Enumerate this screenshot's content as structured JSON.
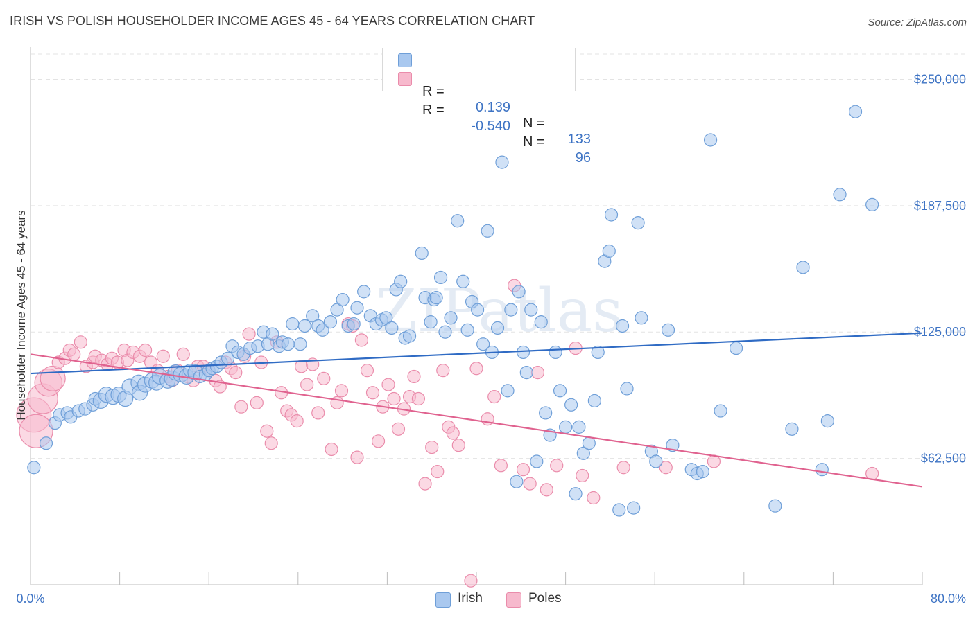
{
  "title": "IRISH VS POLISH HOUSEHOLDER INCOME AGES 45 - 64 YEARS CORRELATION CHART",
  "source": "Source: ZipAtlas.com",
  "watermark": "ZIPatlas",
  "colors": {
    "irish_fill": "#a9c8ef",
    "irish_stroke": "#6f9fd8",
    "irish_line": "#2f6bc4",
    "poles_fill": "#f7b9cd",
    "poles_stroke": "#ea8cab",
    "poles_line": "#e0628f",
    "tick_text": "#3d73c4",
    "grid": "#e3e3e3"
  },
  "legend": {
    "rows": [
      {
        "r_label": "R =",
        "r_value": "0.139",
        "n_label": "N =",
        "n_value": "133"
      },
      {
        "r_label": "R =",
        "r_value": "-0.540",
        "n_label": "N =",
        "n_value": "96"
      }
    ]
  },
  "bottom_legend": [
    "Irish",
    "Poles"
  ],
  "chart_data": {
    "type": "scatter",
    "title": "IRISH VS POLISH HOUSEHOLDER INCOME AGES 45 - 64 YEARS CORRELATION CHART",
    "xlabel": "",
    "ylabel": "Householder Income Ages 45 - 64 years",
    "xlim": [
      0,
      80
    ],
    "ylim": [
      0,
      262500
    ],
    "x_tick_labels": [
      "0.0%",
      "80.0%"
    ],
    "y_ticks": [
      62500,
      125000,
      187500,
      250000
    ],
    "y_tick_labels": [
      "$62,500",
      "$125,000",
      "$187,500",
      "$250,000"
    ],
    "grid": "horizontal dashed",
    "legend_position": "top-center",
    "series": [
      {
        "name": "Irish",
        "trend": {
          "x": [
            0,
            80
          ],
          "y": [
            104500,
            124500
          ]
        },
        "points": [
          [
            0.3,
            58000
          ],
          [
            1.4,
            70000
          ],
          [
            2.2,
            80000
          ],
          [
            2.6,
            84000
          ],
          [
            3.3,
            85000
          ],
          [
            3.6,
            83000
          ],
          [
            4.3,
            86000
          ],
          [
            4.9,
            87000
          ],
          [
            5.6,
            89000
          ],
          [
            5.8,
            92000
          ],
          [
            6.3,
            91000
          ],
          [
            6.8,
            94000
          ],
          [
            7.4,
            93000
          ],
          [
            7.9,
            94000
          ],
          [
            8.5,
            92000
          ],
          [
            8.9,
            98000
          ],
          [
            9.7,
            100000
          ],
          [
            9.8,
            95000
          ],
          [
            10.3,
            99000
          ],
          [
            10.9,
            101000
          ],
          [
            11.3,
            100000
          ],
          [
            11.6,
            103000
          ],
          [
            12.3,
            101000
          ],
          [
            12.7,
            102000
          ],
          [
            13.0,
            105000
          ],
          [
            13.5,
            104000
          ],
          [
            14.0,
            103000
          ],
          [
            14.3,
            106000
          ],
          [
            14.8,
            105000
          ],
          [
            15.2,
            103000
          ],
          [
            15.7,
            104000
          ],
          [
            16.0,
            106000
          ],
          [
            16.3,
            107000
          ],
          [
            16.7,
            108000
          ],
          [
            17.1,
            110000
          ],
          [
            17.7,
            112000
          ],
          [
            18.1,
            118000
          ],
          [
            18.6,
            115000
          ],
          [
            19.1,
            114000
          ],
          [
            19.7,
            117000
          ],
          [
            20.4,
            118000
          ],
          [
            20.9,
            125000
          ],
          [
            21.3,
            119000
          ],
          [
            21.7,
            124000
          ],
          [
            22.3,
            118000
          ],
          [
            22.6,
            120000
          ],
          [
            23.1,
            119000
          ],
          [
            23.5,
            129000
          ],
          [
            24.2,
            119000
          ],
          [
            24.6,
            128000
          ],
          [
            25.3,
            133000
          ],
          [
            25.8,
            128000
          ],
          [
            26.2,
            126000
          ],
          [
            26.9,
            130000
          ],
          [
            27.5,
            136000
          ],
          [
            28.0,
            141000
          ],
          [
            28.5,
            128000
          ],
          [
            29.0,
            129000
          ],
          [
            29.3,
            137000
          ],
          [
            29.9,
            145000
          ],
          [
            30.5,
            133000
          ],
          [
            31.0,
            129000
          ],
          [
            31.5,
            131000
          ],
          [
            31.9,
            132000
          ],
          [
            32.4,
            127000
          ],
          [
            32.8,
            146000
          ],
          [
            33.2,
            150000
          ],
          [
            33.6,
            122000
          ],
          [
            34.0,
            123000
          ],
          [
            35.1,
            164000
          ],
          [
            35.4,
            142000
          ],
          [
            35.9,
            130000
          ],
          [
            36.2,
            141000
          ],
          [
            36.4,
            142000
          ],
          [
            36.8,
            152000
          ],
          [
            37.2,
            125000
          ],
          [
            37.7,
            132000
          ],
          [
            38.3,
            180000
          ],
          [
            38.8,
            150000
          ],
          [
            39.2,
            126000
          ],
          [
            39.6,
            140000
          ],
          [
            40.1,
            136000
          ],
          [
            40.6,
            119000
          ],
          [
            41.0,
            175000
          ],
          [
            41.4,
            115000
          ],
          [
            41.9,
            127000
          ],
          [
            42.3,
            209000
          ],
          [
            42.8,
            96000
          ],
          [
            43.1,
            136000
          ],
          [
            43.6,
            51000
          ],
          [
            43.8,
            145000
          ],
          [
            44.2,
            115000
          ],
          [
            44.5,
            105000
          ],
          [
            44.9,
            136000
          ],
          [
            45.4,
            61000
          ],
          [
            45.8,
            130000
          ],
          [
            46.2,
            85000
          ],
          [
            46.6,
            74000
          ],
          [
            47.1,
            115000
          ],
          [
            47.5,
            96000
          ],
          [
            48.0,
            78000
          ],
          [
            48.5,
            89000
          ],
          [
            48.9,
            45000
          ],
          [
            49.2,
            78000
          ],
          [
            49.6,
            65000
          ],
          [
            50.1,
            70000
          ],
          [
            50.6,
            91000
          ],
          [
            50.9,
            115000
          ],
          [
            51.5,
            160000
          ],
          [
            51.9,
            165000
          ],
          [
            52.1,
            183000
          ],
          [
            52.8,
            37000
          ],
          [
            53.1,
            128000
          ],
          [
            53.5,
            97000
          ],
          [
            54.1,
            38000
          ],
          [
            54.5,
            179000
          ],
          [
            54.8,
            132000
          ],
          [
            55.7,
            66000
          ],
          [
            56.1,
            61000
          ],
          [
            57.2,
            126000
          ],
          [
            57.6,
            69000
          ],
          [
            59.3,
            57000
          ],
          [
            59.8,
            55000
          ],
          [
            60.3,
            56000
          ],
          [
            61.0,
            220000
          ],
          [
            61.9,
            86000
          ],
          [
            63.3,
            117000
          ],
          [
            66.8,
            39000
          ],
          [
            68.3,
            77000
          ],
          [
            69.3,
            157000
          ],
          [
            71.0,
            57000
          ],
          [
            71.5,
            81000
          ],
          [
            72.6,
            193000
          ],
          [
            74.0,
            234000
          ],
          [
            75.5,
            188000
          ]
        ]
      },
      {
        "name": "Poles",
        "trend": {
          "x": [
            0,
            80
          ],
          "y": [
            114000,
            48500
          ]
        },
        "points": [
          [
            0.3,
            84000
          ],
          [
            0.5,
            76000
          ],
          [
            1.1,
            92000
          ],
          [
            1.6,
            100000
          ],
          [
            2.0,
            102000
          ],
          [
            2.5,
            110000
          ],
          [
            3.1,
            112000
          ],
          [
            3.5,
            116000
          ],
          [
            3.9,
            114000
          ],
          [
            4.5,
            120000
          ],
          [
            5.0,
            108000
          ],
          [
            5.6,
            110000
          ],
          [
            5.8,
            113000
          ],
          [
            6.4,
            111000
          ],
          [
            6.9,
            109000
          ],
          [
            7.3,
            112000
          ],
          [
            7.8,
            110000
          ],
          [
            8.4,
            116000
          ],
          [
            8.7,
            111000
          ],
          [
            9.2,
            115000
          ],
          [
            9.8,
            113000
          ],
          [
            10.3,
            116000
          ],
          [
            10.8,
            110000
          ],
          [
            11.4,
            106000
          ],
          [
            11.9,
            113000
          ],
          [
            12.3,
            103000
          ],
          [
            12.7,
            101000
          ],
          [
            13.2,
            106000
          ],
          [
            13.7,
            114000
          ],
          [
            14.1,
            103000
          ],
          [
            14.6,
            101000
          ],
          [
            15.0,
            108000
          ],
          [
            15.5,
            108000
          ],
          [
            16.0,
            106000
          ],
          [
            16.6,
            101000
          ],
          [
            17.0,
            98000
          ],
          [
            17.5,
            110000
          ],
          [
            18.0,
            107000
          ],
          [
            18.4,
            105000
          ],
          [
            18.9,
            88000
          ],
          [
            19.2,
            113000
          ],
          [
            19.6,
            124000
          ],
          [
            20.3,
            90000
          ],
          [
            20.7,
            110000
          ],
          [
            21.2,
            76000
          ],
          [
            21.6,
            70000
          ],
          [
            22.1,
            120000
          ],
          [
            22.5,
            95000
          ],
          [
            23.0,
            86000
          ],
          [
            23.4,
            84000
          ],
          [
            23.9,
            81000
          ],
          [
            24.3,
            108000
          ],
          [
            24.8,
            99000
          ],
          [
            25.3,
            109000
          ],
          [
            25.8,
            85000
          ],
          [
            26.3,
            102000
          ],
          [
            27.0,
            67000
          ],
          [
            27.5,
            90000
          ],
          [
            27.9,
            96000
          ],
          [
            28.5,
            129000
          ],
          [
            28.9,
            128000
          ],
          [
            29.3,
            63000
          ],
          [
            29.7,
            121000
          ],
          [
            30.2,
            106000
          ],
          [
            30.7,
            95000
          ],
          [
            31.2,
            71000
          ],
          [
            31.6,
            88000
          ],
          [
            32.1,
            99000
          ],
          [
            32.6,
            92000
          ],
          [
            33.0,
            77000
          ],
          [
            33.5,
            87000
          ],
          [
            34.0,
            93000
          ],
          [
            34.4,
            103000
          ],
          [
            34.8,
            92000
          ],
          [
            35.4,
            50000
          ],
          [
            36.0,
            68000
          ],
          [
            36.5,
            56000
          ],
          [
            37.0,
            106000
          ],
          [
            37.5,
            78000
          ],
          [
            37.9,
            75000
          ],
          [
            38.4,
            69000
          ],
          [
            39.5,
            2000
          ],
          [
            40.0,
            107000
          ],
          [
            41.0,
            82000
          ],
          [
            41.6,
            93000
          ],
          [
            42.2,
            59000
          ],
          [
            43.4,
            148000
          ],
          [
            44.2,
            57000
          ],
          [
            44.8,
            50000
          ],
          [
            45.5,
            105000
          ],
          [
            46.3,
            47000
          ],
          [
            47.2,
            59000
          ],
          [
            48.9,
            117000
          ],
          [
            49.5,
            54000
          ],
          [
            50.5,
            43000
          ],
          [
            53.2,
            58000
          ],
          [
            57.0,
            58000
          ],
          [
            61.3,
            61000
          ],
          [
            75.5,
            55000
          ]
        ]
      }
    ]
  }
}
